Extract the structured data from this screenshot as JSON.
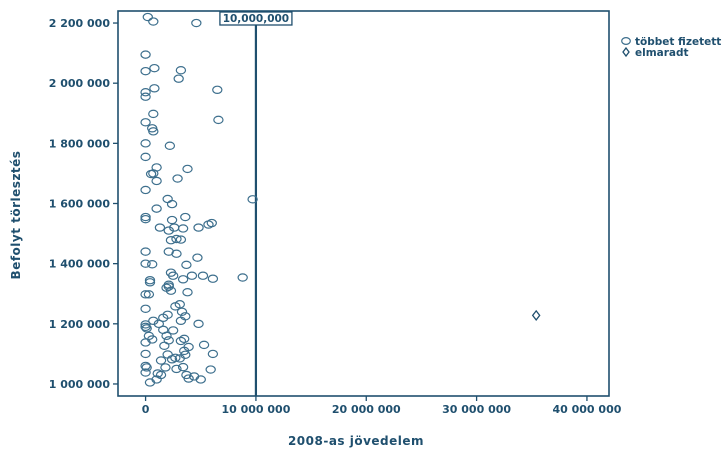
{
  "chart_data": {
    "type": "scatter",
    "xlabel": "2008-as jövedelem",
    "ylabel": "Befolyt törlesztés",
    "xlim": [
      -2500000,
      42000000
    ],
    "ylim": [
      960000,
      2240000
    ],
    "x_ticks": [
      0,
      10000000,
      20000000,
      30000000,
      40000000
    ],
    "x_tick_labels": [
      "0",
      "10 000 000",
      "20 000 000",
      "30 000 000",
      "40 000 000"
    ],
    "y_ticks": [
      1000000,
      1200000,
      1400000,
      1600000,
      1800000,
      2000000,
      2200000
    ],
    "y_tick_labels": [
      "1 000 000",
      "1 200 000",
      "1 400 000",
      "1 600 000",
      "1 800 000",
      "2 000 000",
      "2 200 000"
    ],
    "reference_line": {
      "x": 10000000,
      "label": "10,000,000"
    },
    "legend": {
      "placement": "right-top"
    },
    "grid": false,
    "color": "#1f4f6e",
    "series": [
      {
        "name": "többet fizetett",
        "marker": "circle",
        "points": [
          [
            200000,
            2220000
          ],
          [
            700000,
            2205000
          ],
          [
            4600000,
            2200000
          ],
          [
            0,
            2095000
          ],
          [
            800000,
            2050000
          ],
          [
            3200000,
            2043000
          ],
          [
            0,
            2040000
          ],
          [
            3000000,
            2015000
          ],
          [
            800000,
            1983000
          ],
          [
            0,
            1970000
          ],
          [
            6500000,
            1978000
          ],
          [
            0,
            1955000
          ],
          [
            700000,
            1898000
          ],
          [
            6600000,
            1878000
          ],
          [
            0,
            1870000
          ],
          [
            600000,
            1850000
          ],
          [
            700000,
            1840000
          ],
          [
            0,
            1800000
          ],
          [
            2200000,
            1792000
          ],
          [
            0,
            1755000
          ],
          [
            1000000,
            1720000
          ],
          [
            3800000,
            1715000
          ],
          [
            700000,
            1700000
          ],
          [
            500000,
            1698000
          ],
          [
            2900000,
            1683000
          ],
          [
            1000000,
            1675000
          ],
          [
            0,
            1645000
          ],
          [
            2000000,
            1615000
          ],
          [
            9700000,
            1614000
          ],
          [
            1000000,
            1583000
          ],
          [
            2400000,
            1598000
          ],
          [
            0,
            1555000
          ],
          [
            0,
            1548000
          ],
          [
            3600000,
            1555000
          ],
          [
            2400000,
            1545000
          ],
          [
            6000000,
            1535000
          ],
          [
            5700000,
            1530000
          ],
          [
            1300000,
            1520000
          ],
          [
            2100000,
            1510000
          ],
          [
            4800000,
            1520000
          ],
          [
            2600000,
            1520000
          ],
          [
            3400000,
            1517000
          ],
          [
            2800000,
            1482000
          ],
          [
            3200000,
            1480000
          ],
          [
            2300000,
            1478000
          ],
          [
            0,
            1440000
          ],
          [
            2100000,
            1440000
          ],
          [
            2800000,
            1433000
          ],
          [
            4700000,
            1420000
          ],
          [
            0,
            1400000
          ],
          [
            600000,
            1398000
          ],
          [
            3700000,
            1396000
          ],
          [
            2300000,
            1370000
          ],
          [
            4200000,
            1360000
          ],
          [
            8800000,
            1354000
          ],
          [
            2500000,
            1360000
          ],
          [
            5200000,
            1360000
          ],
          [
            6100000,
            1350000
          ],
          [
            400000,
            1345000
          ],
          [
            3400000,
            1348000
          ],
          [
            400000,
            1338000
          ],
          [
            2100000,
            1330000
          ],
          [
            2100000,
            1324000
          ],
          [
            1900000,
            1320000
          ],
          [
            2300000,
            1310000
          ],
          [
            3800000,
            1305000
          ],
          [
            0,
            1298000
          ],
          [
            300000,
            1298000
          ],
          [
            3100000,
            1265000
          ],
          [
            2700000,
            1258000
          ],
          [
            0,
            1250000
          ],
          [
            3300000,
            1240000
          ],
          [
            3600000,
            1225000
          ],
          [
            2000000,
            1230000
          ],
          [
            1600000,
            1220000
          ],
          [
            3200000,
            1210000
          ],
          [
            700000,
            1210000
          ],
          [
            4800000,
            1200000
          ],
          [
            0,
            1198000
          ],
          [
            1200000,
            1200000
          ],
          [
            0,
            1190000
          ],
          [
            100000,
            1185000
          ],
          [
            1600000,
            1180000
          ],
          [
            2500000,
            1178000
          ],
          [
            300000,
            1160000
          ],
          [
            1900000,
            1160000
          ],
          [
            3500000,
            1150000
          ],
          [
            600000,
            1148000
          ],
          [
            2100000,
            1145000
          ],
          [
            3200000,
            1143000
          ],
          [
            0,
            1138000
          ],
          [
            5300000,
            1130000
          ],
          [
            1700000,
            1127000
          ],
          [
            3900000,
            1123000
          ],
          [
            3500000,
            1110000
          ],
          [
            0,
            1100000
          ],
          [
            6100000,
            1100000
          ],
          [
            2000000,
            1098000
          ],
          [
            3600000,
            1097000
          ],
          [
            2700000,
            1087000
          ],
          [
            1400000,
            1078000
          ],
          [
            2400000,
            1082000
          ],
          [
            3100000,
            1085000
          ],
          [
            0,
            1060000
          ],
          [
            100000,
            1055000
          ],
          [
            3400000,
            1056000
          ],
          [
            1800000,
            1055000
          ],
          [
            2800000,
            1050000
          ],
          [
            5900000,
            1048000
          ],
          [
            0,
            1038000
          ],
          [
            1100000,
            1035000
          ],
          [
            1400000,
            1030000
          ],
          [
            3700000,
            1030000
          ],
          [
            4400000,
            1025000
          ],
          [
            3900000,
            1018000
          ],
          [
            1000000,
            1015000
          ],
          [
            5000000,
            1015000
          ],
          [
            400000,
            1005000
          ]
        ]
      },
      {
        "name": "elmaradt",
        "marker": "diamond",
        "points": [
          [
            35400000,
            1228000
          ]
        ]
      }
    ]
  }
}
